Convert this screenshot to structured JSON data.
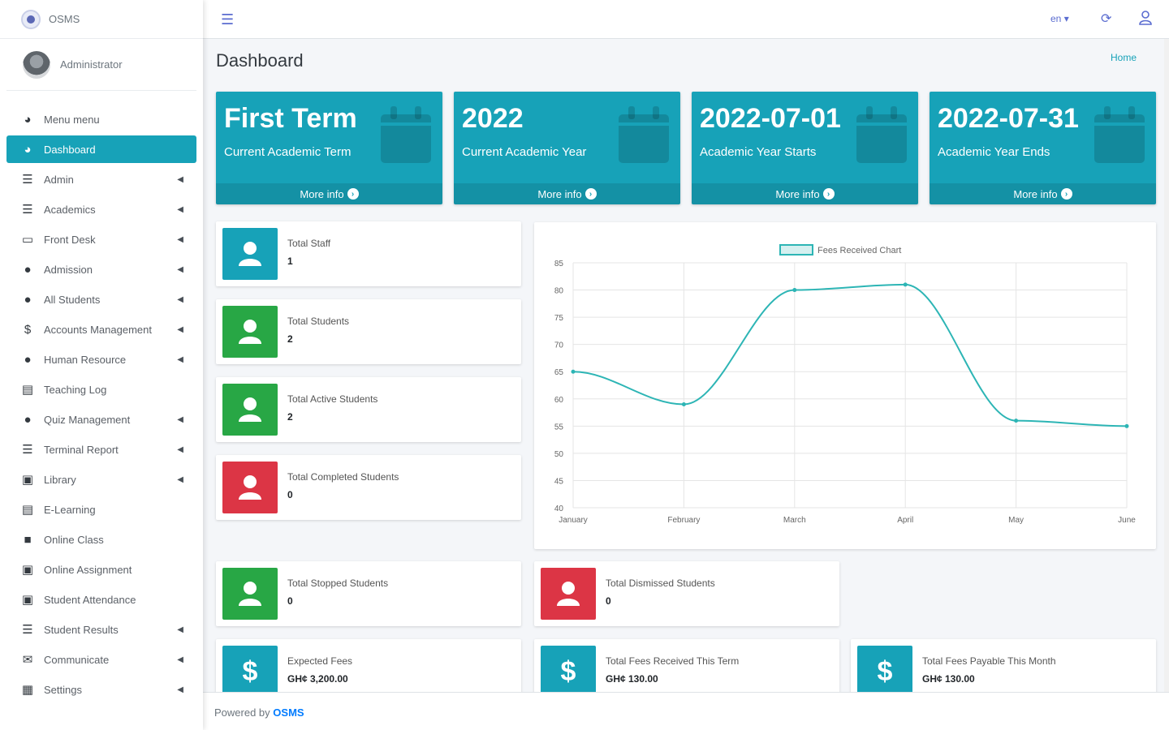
{
  "brand": {
    "name": "OSMS"
  },
  "user": {
    "name": "Administrator"
  },
  "sidebar": {
    "items": [
      {
        "label": "Menu menu",
        "icon": "dashboard-icon",
        "glyph": "◕",
        "caret": false,
        "active": false
      },
      {
        "label": "Dashboard",
        "icon": "dashboard-icon",
        "glyph": "◕",
        "caret": false,
        "active": true
      },
      {
        "label": "Admin",
        "icon": "list-icon",
        "glyph": "☰",
        "caret": true,
        "active": false
      },
      {
        "label": "Academics",
        "icon": "list-icon",
        "glyph": "☰",
        "caret": true,
        "active": false
      },
      {
        "label": "Front Desk",
        "icon": "desktop-icon",
        "glyph": "▭",
        "caret": true,
        "active": false
      },
      {
        "label": "Admission",
        "icon": "user-icon",
        "glyph": "●",
        "caret": true,
        "active": false
      },
      {
        "label": "All Students",
        "icon": "user-icon",
        "glyph": "●",
        "caret": true,
        "active": false
      },
      {
        "label": "Accounts Management",
        "icon": "dollar-icon",
        "glyph": "$",
        "caret": true,
        "active": false
      },
      {
        "label": "Human Resource",
        "icon": "user-icon",
        "glyph": "●",
        "caret": true,
        "active": false
      },
      {
        "label": "Teaching Log",
        "icon": "log-icon",
        "glyph": "▤",
        "caret": false,
        "active": false
      },
      {
        "label": "Quiz Management",
        "icon": "user-edit-icon",
        "glyph": "●",
        "caret": true,
        "active": false
      },
      {
        "label": "Terminal Report",
        "icon": "list-icon",
        "glyph": "☰",
        "caret": true,
        "active": false
      },
      {
        "label": "Library",
        "icon": "book-icon",
        "glyph": "▣",
        "caret": true,
        "active": false
      },
      {
        "label": "E-Learning",
        "icon": "file-icon",
        "glyph": "▤",
        "caret": false,
        "active": false
      },
      {
        "label": "Online Class",
        "icon": "video-icon",
        "glyph": "■",
        "caret": false,
        "active": false
      },
      {
        "label": "Online Assignment",
        "icon": "book-icon",
        "glyph": "▣",
        "caret": false,
        "active": false
      },
      {
        "label": "Student Attendance",
        "icon": "book-icon",
        "glyph": "▣",
        "caret": false,
        "active": false
      },
      {
        "label": "Student Results",
        "icon": "list-icon",
        "glyph": "☰",
        "caret": true,
        "active": false
      },
      {
        "label": "Communicate",
        "icon": "envelope-icon",
        "glyph": "✉",
        "caret": true,
        "active": false
      },
      {
        "label": "Settings",
        "icon": "settings-icon",
        "glyph": "▦",
        "caret": true,
        "active": false
      }
    ]
  },
  "topbar": {
    "lang": "en",
    "menu_icon": "bars-icon",
    "refresh_icon": "refresh-icon",
    "user_icon": "user-icon"
  },
  "page": {
    "title": "Dashboard",
    "breadcrumb": "Home"
  },
  "stat_boxes": [
    {
      "value": "First Term",
      "label": "Current Academic Term",
      "more": "More info"
    },
    {
      "value": "2022",
      "label": "Current Academic Year",
      "more": "More info"
    },
    {
      "value": "2022-07-01",
      "label": "Academic Year Starts",
      "more": "More info"
    },
    {
      "value": "2022-07-31",
      "label": "Academic Year Ends",
      "more": "More info"
    }
  ],
  "colors": {
    "info": "#17a2b8",
    "success": "#28a745",
    "danger": "#dc3545",
    "line": "#2db5b5"
  },
  "info_boxes": {
    "staff": {
      "label": "Total Staff",
      "value": "1"
    },
    "students": {
      "label": "Total Students",
      "value": "2"
    },
    "active": {
      "label": "Total Active Students",
      "value": "2"
    },
    "completed": {
      "label": "Total Completed Students",
      "value": "0"
    },
    "stopped": {
      "label": "Total Stopped Students",
      "value": "0"
    },
    "dismissed": {
      "label": "Total Dismissed Students",
      "value": "0"
    },
    "expected": {
      "label": "Expected Fees",
      "value": "GH¢ 3,200.00"
    },
    "received": {
      "label": "Total Fees Received This Term",
      "value": "GH¢ 130.00"
    },
    "payable": {
      "label": "Total Fees Payable This Month",
      "value": "GH¢ 130.00"
    }
  },
  "chart_data": {
    "type": "line",
    "title": "",
    "legend": "Fees Received Chart",
    "legend_position": "top",
    "categories": [
      "January",
      "February",
      "March",
      "April",
      "May",
      "June"
    ],
    "series": [
      {
        "name": "Fees Received Chart",
        "values": [
          65,
          59,
          80,
          81,
          56,
          55
        ]
      }
    ],
    "ylim": [
      40,
      85
    ],
    "yticks": [
      40,
      45,
      50,
      55,
      60,
      65,
      70,
      75,
      80,
      85
    ],
    "grid": true
  },
  "footer": {
    "prefix": "Powered by",
    "link": "OSMS"
  }
}
